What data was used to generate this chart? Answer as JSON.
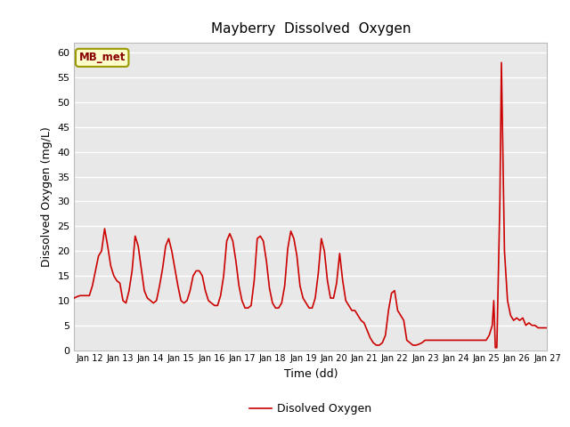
{
  "title": "Mayberry  Dissolved  Oxygen",
  "xlabel": "Time (dd)",
  "ylabel": "Dissolved Oxygen (mg/L)",
  "legend_label": "Disolved Oxygen",
  "xlim": [
    11.5,
    27.0
  ],
  "ylim": [
    0,
    62
  ],
  "yticks": [
    0,
    5,
    10,
    15,
    20,
    25,
    30,
    35,
    40,
    45,
    50,
    55,
    60
  ],
  "xtick_labels": [
    "Jan 12",
    "Jan 13",
    "Jan 14",
    "Jan 15",
    "Jan 16",
    "Jan 17",
    "Jan 18",
    "Jan 19",
    "Jan 20",
    "Jan 21",
    "Jan 22",
    "Jan 23",
    "Jan 24",
    "Jan 25",
    "Jan 26",
    "Jan 27"
  ],
  "xtick_positions": [
    12,
    13,
    14,
    15,
    16,
    17,
    18,
    19,
    20,
    21,
    22,
    23,
    24,
    25,
    26,
    27
  ],
  "line_color": "#cc0000",
  "line_width": 1.2,
  "bg_color": "#e8e8e8",
  "grid_color": "#ffffff",
  "annotation_box": {
    "text": "MB_met",
    "facecolor": "#ffffcc",
    "edgecolor": "#999900",
    "textcolor": "#880000"
  },
  "x_data": [
    11.5,
    11.6,
    11.7,
    11.8,
    11.9,
    12.0,
    12.1,
    12.2,
    12.3,
    12.4,
    12.5,
    12.6,
    12.7,
    12.8,
    12.9,
    13.0,
    13.1,
    13.2,
    13.3,
    13.4,
    13.5,
    13.6,
    13.7,
    13.8,
    13.9,
    14.0,
    14.1,
    14.2,
    14.3,
    14.4,
    14.5,
    14.6,
    14.7,
    14.8,
    14.9,
    15.0,
    15.1,
    15.2,
    15.3,
    15.4,
    15.5,
    15.6,
    15.7,
    15.8,
    15.9,
    16.0,
    16.1,
    16.2,
    16.3,
    16.4,
    16.5,
    16.6,
    16.7,
    16.8,
    16.9,
    17.0,
    17.1,
    17.2,
    17.3,
    17.4,
    17.5,
    17.6,
    17.7,
    17.8,
    17.9,
    18.0,
    18.1,
    18.2,
    18.3,
    18.4,
    18.5,
    18.6,
    18.7,
    18.8,
    18.9,
    19.0,
    19.1,
    19.2,
    19.3,
    19.4,
    19.5,
    19.6,
    19.7,
    19.8,
    19.9,
    20.0,
    20.1,
    20.2,
    20.3,
    20.4,
    20.5,
    20.6,
    20.7,
    20.8,
    20.9,
    21.0,
    21.1,
    21.2,
    21.3,
    21.4,
    21.5,
    21.6,
    21.7,
    21.8,
    21.9,
    22.0,
    22.1,
    22.2,
    22.3,
    22.4,
    22.5,
    22.6,
    22.7,
    22.8,
    22.9,
    23.0,
    23.1,
    23.2,
    23.3,
    23.4,
    23.5,
    23.6,
    23.7,
    23.8,
    23.9,
    24.0,
    24.1,
    24.2,
    24.3,
    24.4,
    24.5,
    24.6,
    24.7,
    24.8,
    24.9,
    25.0,
    25.05,
    25.1,
    25.15,
    25.2,
    25.25,
    25.3,
    25.35,
    25.4,
    25.45,
    25.5,
    25.6,
    25.7,
    25.8,
    25.9,
    26.0,
    26.1,
    26.2,
    26.3,
    26.4,
    26.5,
    26.6,
    26.7,
    26.8,
    26.9,
    27.0
  ],
  "y_data": [
    10.5,
    10.8,
    11.0,
    11.0,
    11.0,
    11.0,
    13.0,
    16.0,
    19.0,
    20.0,
    24.5,
    21.0,
    17.0,
    15.0,
    14.0,
    13.5,
    10.0,
    9.5,
    12.0,
    16.0,
    23.0,
    21.0,
    16.5,
    12.0,
    10.5,
    10.0,
    9.5,
    10.0,
    13.0,
    16.5,
    21.0,
    22.5,
    20.0,
    16.5,
    13.0,
    10.0,
    9.5,
    10.0,
    12.0,
    15.0,
    16.0,
    16.0,
    15.0,
    12.0,
    10.0,
    9.5,
    9.0,
    9.0,
    11.0,
    15.0,
    22.0,
    23.5,
    22.0,
    18.0,
    13.0,
    10.0,
    8.5,
    8.5,
    9.0,
    14.0,
    22.5,
    23.0,
    22.0,
    18.0,
    12.5,
    9.5,
    8.5,
    8.5,
    9.5,
    13.0,
    20.5,
    24.0,
    22.5,
    19.0,
    13.0,
    10.5,
    9.5,
    8.5,
    8.5,
    10.5,
    15.5,
    22.5,
    20.0,
    14.0,
    10.5,
    10.5,
    13.5,
    19.5,
    14.0,
    10.0,
    9.0,
    8.0,
    8.0,
    7.0,
    6.0,
    5.5,
    4.0,
    2.5,
    1.5,
    1.0,
    1.0,
    1.5,
    3.0,
    8.0,
    11.5,
    12.0,
    8.0,
    7.0,
    6.0,
    2.0,
    1.5,
    1.0,
    1.0,
    1.2,
    1.5,
    2.0,
    2.0,
    2.0,
    2.0,
    2.0,
    2.0,
    2.0,
    2.0,
    2.0,
    2.0,
    2.0,
    2.0,
    2.0,
    2.0,
    2.0,
    2.0,
    2.0,
    2.0,
    2.0,
    2.0,
    2.0,
    2.5,
    3.0,
    4.0,
    5.0,
    10.0,
    0.5,
    0.5,
    15.0,
    30.0,
    58.0,
    20.0,
    10.0,
    7.0,
    6.0,
    6.5,
    6.0,
    6.5,
    5.0,
    5.5,
    5.0,
    5.0,
    4.5,
    4.5,
    4.5,
    4.5
  ]
}
